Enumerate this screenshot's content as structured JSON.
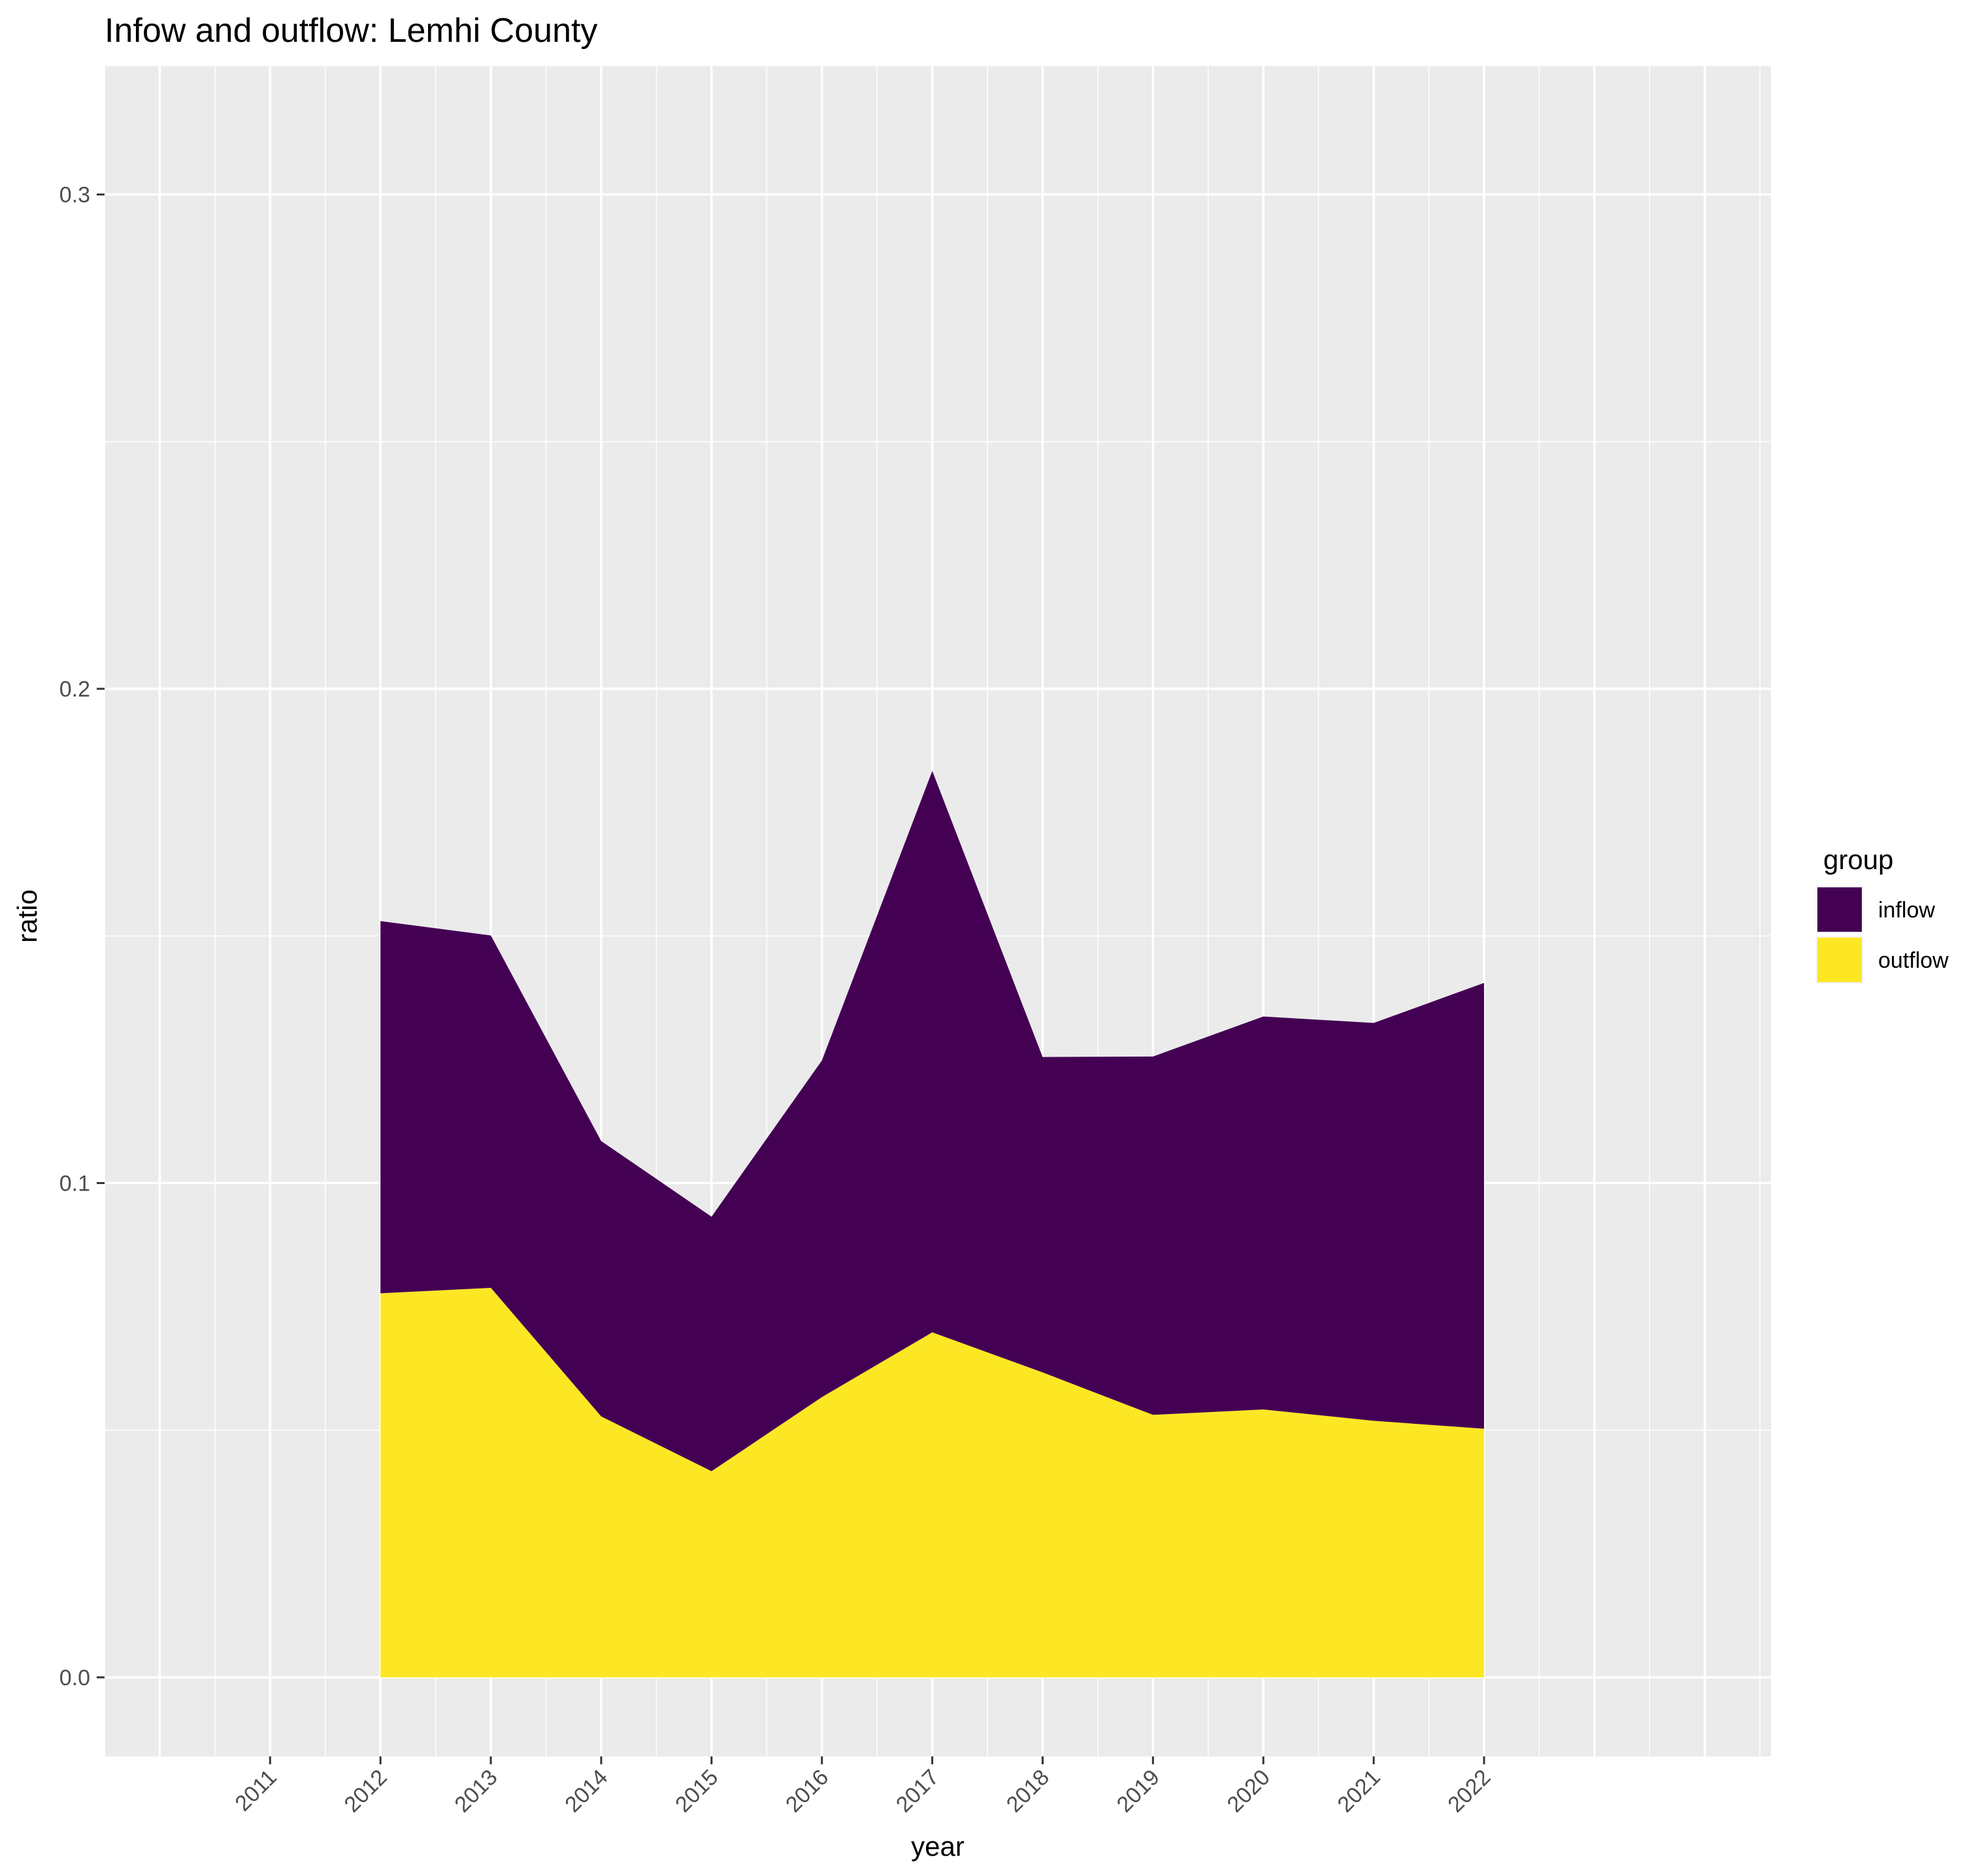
{
  "chart_data": {
    "type": "area",
    "stacked": true,
    "title": "Infow and outflow:  Lemhi County",
    "xlabel": "year",
    "ylabel": "ratio",
    "x_ticks": [
      "2011",
      "2012",
      "2013",
      "2014",
      "2015",
      "2016",
      "2017",
      "2018",
      "2019",
      "2020",
      "2021",
      "2022"
    ],
    "x": [
      2012,
      2013,
      2014,
      2015,
      2016,
      2017,
      2018,
      2019,
      2020,
      2021,
      2022
    ],
    "xlim": [
      2009.5,
      2024.6
    ],
    "y_ticks": [
      "0.0",
      "0.1",
      "0.2",
      "0.3"
    ],
    "ylim": [
      -0.016,
      0.326
    ],
    "grid": true,
    "legend": {
      "title": "group",
      "position": "right"
    },
    "series": [
      {
        "name": "outflow",
        "color": "#FDE725",
        "values": [
          0.0777,
          0.0788,
          0.0528,
          0.0417,
          0.0567,
          0.0698,
          0.0617,
          0.0531,
          0.0542,
          0.0519,
          0.0503
        ]
      },
      {
        "name": "inflow",
        "color": "#440154",
        "values": [
          0.0753,
          0.0713,
          0.0557,
          0.0515,
          0.0681,
          0.1136,
          0.0638,
          0.0725,
          0.0795,
          0.0805,
          0.0902
        ]
      }
    ]
  }
}
